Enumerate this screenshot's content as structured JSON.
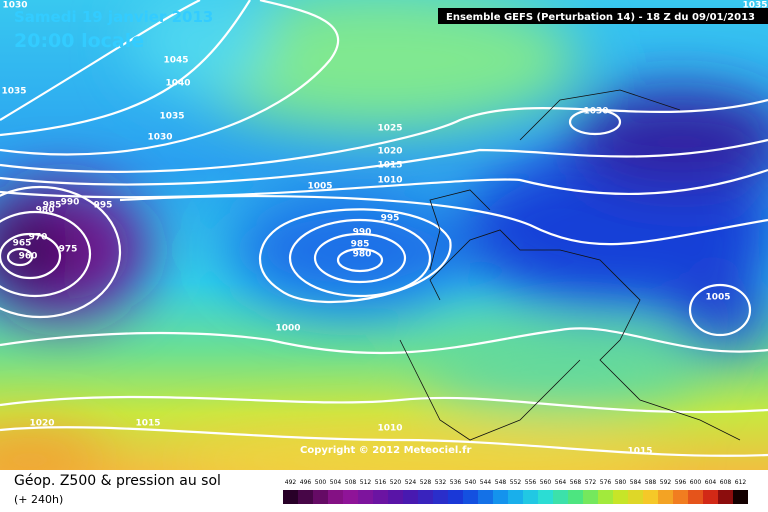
{
  "header": {
    "date": "Samedi 19 janvier 2013",
    "time": "20:00 locale",
    "model": "Ensemble GEFS (Perturbation 14)  -  18 Z du 09/01/2013"
  },
  "copyright": "Copyright © 2012 Meteociel.fr",
  "legend": {
    "title": "Géop. Z500 & pression au sol",
    "lead": "(+ 240h)",
    "scale": [
      492,
      496,
      500,
      504,
      508,
      512,
      516,
      520,
      524,
      528,
      532,
      536,
      540,
      544,
      548,
      552,
      556,
      560,
      564,
      568,
      572,
      576,
      580,
      584,
      588,
      592,
      596,
      600,
      604,
      608,
      612
    ]
  },
  "isobar_labels": [
    1030,
    1035,
    1045,
    1040,
    1035,
    1030,
    1025,
    1020,
    1015,
    1010,
    1005,
    995,
    990,
    985,
    980,
    970,
    965,
    960,
    975,
    995,
    990,
    985,
    980,
    1030,
    1005,
    1000,
    1020,
    1015,
    1010,
    1015,
    1035
  ]
}
